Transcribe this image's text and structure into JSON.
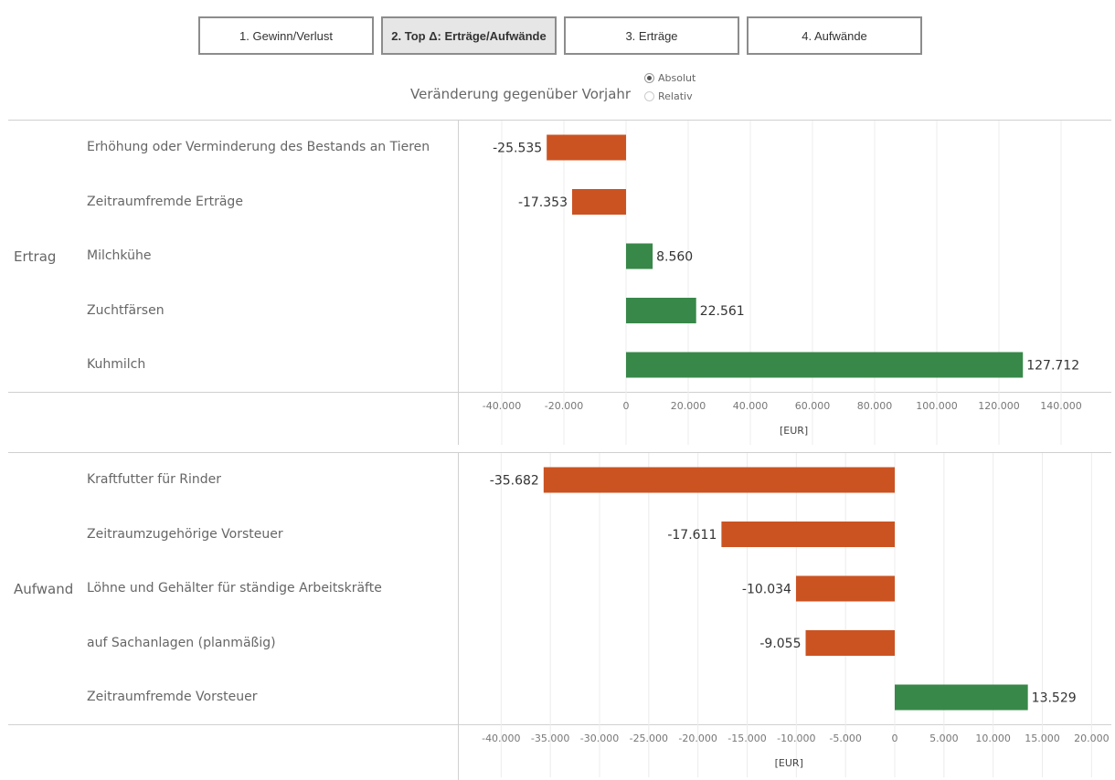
{
  "tabs": [
    {
      "label": "1. Gewinn/Verlust",
      "active": false
    },
    {
      "label": "2. Top Δ: Erträge/Aufwände",
      "active": true
    },
    {
      "label": "3. Erträge",
      "active": false
    },
    {
      "label": "4. Aufwände",
      "active": false
    }
  ],
  "control": {
    "title": "Veränderung gegenüber Vorjahr",
    "options": [
      {
        "label": "Absolut",
        "selected": true
      },
      {
        "label": "Relativ",
        "selected": false
      }
    ]
  },
  "colors": {
    "positive": "#38884a",
    "negative": "#cb5322",
    "grid": "#ececec",
    "axis_text": "#777777"
  },
  "chart_data": [
    {
      "type": "bar",
      "orientation": "horizontal",
      "group": "Ertrag",
      "categories": [
        "Erhöhung oder Verminderung des Bestands an Tieren",
        "Zeitraumfremde Erträge",
        "Milchkühe",
        "Zuchtfärsen",
        "Kuhmilch"
      ],
      "values": [
        -25535,
        -17353,
        8560,
        22561,
        127712
      ],
      "value_labels": [
        "-25.535",
        "-17.353",
        "8.560",
        "22.561",
        "127.712"
      ],
      "xlabel": "[EUR]",
      "xlim": [
        -48000,
        156000
      ],
      "ticks": [
        -40000,
        -20000,
        0,
        20000,
        40000,
        60000,
        80000,
        100000,
        120000,
        140000
      ],
      "tick_labels": [
        "-40.000",
        "-20.000",
        "0",
        "20.000",
        "40.000",
        "60.000",
        "80.000",
        "100.000",
        "120.000",
        "140.000"
      ],
      "grid": true
    },
    {
      "type": "bar",
      "orientation": "horizontal",
      "group": "Aufwand",
      "categories": [
        "Kraftfutter für Rinder",
        "Zeitraumzugehörige Vorsteuer",
        "Löhne und Gehälter für ständige Arbeitskräfte",
        "auf Sachanlagen (planmäßig)",
        "Zeitraumfremde Vorsteuer"
      ],
      "values": [
        -35682,
        -17611,
        -10034,
        -9055,
        13529
      ],
      "value_labels": [
        "-35.682",
        "-17.611",
        "-10.034",
        "-9.055",
        "13.529"
      ],
      "xlabel": "[EUR]",
      "xlim": [
        -43000,
        21500
      ],
      "ticks": [
        -40000,
        -35000,
        -30000,
        -25000,
        -20000,
        -15000,
        -10000,
        -5000,
        0,
        5000,
        10000,
        15000,
        20000
      ],
      "tick_labels": [
        "-40.000",
        "-35.000",
        "-30.000",
        "-25.000",
        "-20.000",
        "-15.000",
        "-10.000",
        "-5.000",
        "0",
        "5.000",
        "10.000",
        "15.000",
        "20.000"
      ],
      "grid": true
    }
  ]
}
